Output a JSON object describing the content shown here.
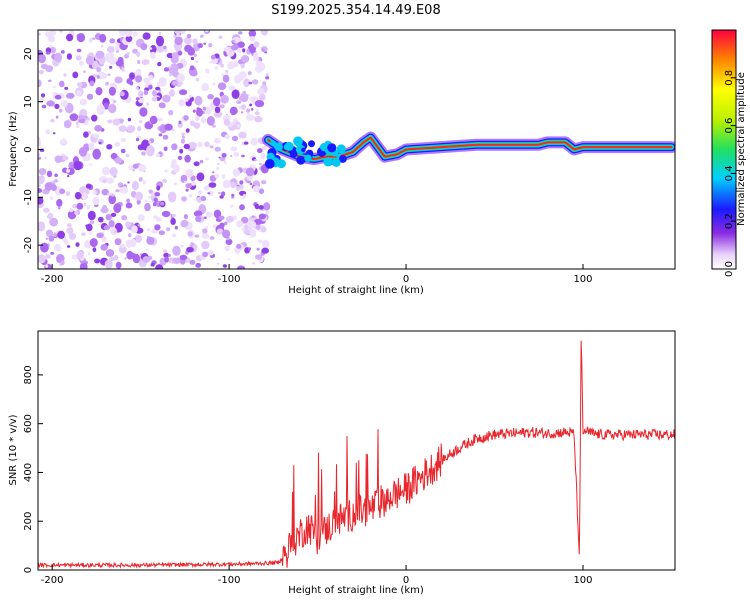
{
  "title": "S199.2025.354.14.49.E08",
  "chart_data": [
    {
      "type": "heatmap",
      "title": "S199.2025.354.14.49.E08",
      "xlabel": "Height of straight line (km)",
      "ylabel": "Frequency (Hz)",
      "xlim": [
        -208,
        152
      ],
      "ylim": [
        -25,
        25
      ],
      "xticks": [
        -200,
        -100,
        0,
        100
      ],
      "yticks": [
        -20,
        -10,
        0,
        10,
        20
      ],
      "colorbar": {
        "label": "Normalized spectral amplitude",
        "range": [
          0,
          1
        ],
        "ticks": [
          "0.0",
          "0.2",
          "0.4",
          "0.6",
          "0.8"
        ]
      },
      "noise_region": {
        "x_from": -208,
        "x_to": -78
      },
      "ridge": {
        "x": [
          -78,
          -70,
          -60,
          -52,
          -45,
          -38,
          -30,
          -24,
          -20,
          -15,
          -12,
          -5,
          0,
          20,
          40,
          75,
          80,
          90,
          95,
          100,
          110,
          150
        ],
        "y": [
          2,
          0,
          -1.5,
          -2,
          -1.5,
          -1.5,
          -0.5,
          1.5,
          2.5,
          0,
          -1.5,
          -1,
          0,
          0.5,
          1,
          1,
          1.5,
          1.5,
          0,
          0.5,
          0.5,
          0.5
        ]
      }
    },
    {
      "type": "line",
      "xlabel": "Height of straight line (km)",
      "ylabel": "SNR (10 * v/v)",
      "xlim": [
        -208,
        152
      ],
      "ylim": [
        0,
        980
      ],
      "xticks": [
        -200,
        -100,
        0,
        100
      ],
      "yticks": [
        0,
        200,
        400,
        600,
        800
      ],
      "color": "#e8262c",
      "series": [
        {
          "name": "SNR",
          "x": [
            -208,
            -180,
            -150,
            -120,
            -90,
            -72,
            -65,
            -60,
            -55,
            -50,
            -40,
            -30,
            -20,
            -10,
            0,
            10,
            20,
            30,
            40,
            50,
            60,
            70,
            80,
            90,
            95,
            98,
            99,
            100,
            101,
            105,
            110,
            120,
            130,
            140,
            152
          ],
          "y": [
            20,
            20,
            20,
            22,
            25,
            30,
            100,
            150,
            180,
            130,
            200,
            230,
            250,
            300,
            330,
            390,
            450,
            500,
            540,
            555,
            560,
            565,
            560,
            565,
            560,
            40,
            980,
            560,
            570,
            560,
            555,
            555,
            555,
            555,
            555
          ]
        }
      ]
    }
  ]
}
